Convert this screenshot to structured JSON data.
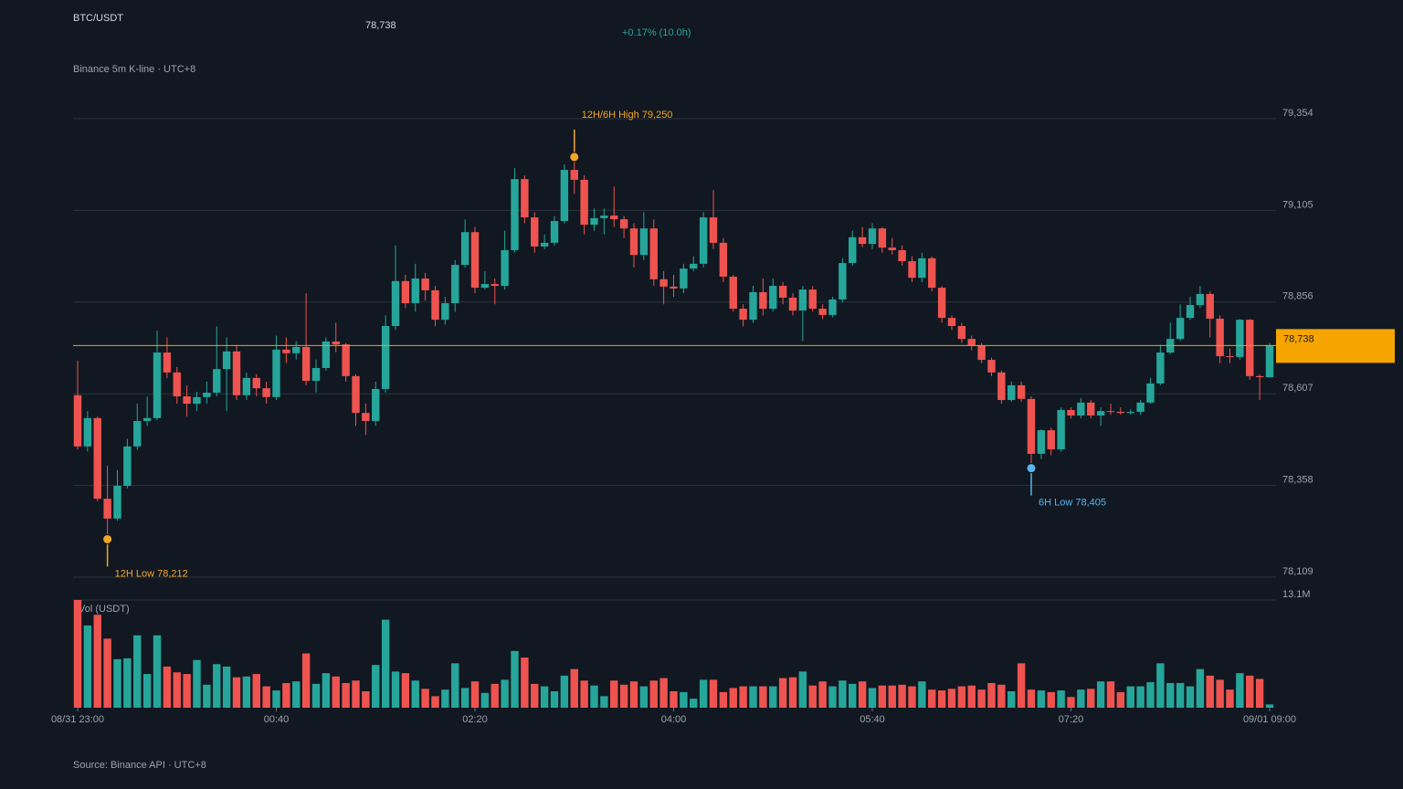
{
  "chart_data": {
    "type": "candlestick",
    "title": "BTC/USDT",
    "price": "78,738",
    "change": "+0.17% (10.0h)",
    "subtitle": "Binance 5m K-line · UTC+8",
    "source": "Source: Binance API · UTC+8",
    "volume_label": "Vol (USDT)",
    "up_color": "#26a69a",
    "down_color": "#ef5350",
    "grid": true,
    "categories": [
      "08/31 23:00",
      null,
      null,
      null,
      null,
      null,
      null,
      null,
      null,
      null,
      null,
      null,
      null,
      null,
      null,
      null,
      null,
      null,
      null,
      null,
      "00:40",
      null,
      null,
      null,
      null,
      null,
      null,
      null,
      null,
      null,
      null,
      null,
      null,
      null,
      null,
      null,
      null,
      null,
      null,
      null,
      "02:20",
      null,
      null,
      null,
      null,
      null,
      null,
      null,
      null,
      null,
      null,
      null,
      null,
      null,
      null,
      null,
      null,
      null,
      null,
      null,
      "04:00",
      null,
      null,
      null,
      null,
      null,
      null,
      null,
      null,
      null,
      null,
      null,
      null,
      null,
      null,
      null,
      null,
      null,
      null,
      null,
      "05:40",
      null,
      null,
      null,
      null,
      null,
      null,
      null,
      null,
      null,
      null,
      null,
      null,
      null,
      null,
      null,
      null,
      null,
      null,
      null,
      "07:20",
      null,
      null,
      null,
      null,
      null,
      null,
      null,
      null,
      null,
      null,
      null,
      null,
      null,
      null,
      null,
      null,
      null,
      null,
      null,
      "09/01 09:00"
    ],
    "open": [
      78603,
      78464,
      78541,
      78322,
      78268,
      78357,
      78464,
      78533,
      78541,
      78719,
      78665,
      78600,
      78580,
      78598,
      78610,
      78674,
      78722,
      78603,
      78650,
      78622,
      78598,
      78727,
      78717,
      78734,
      78642,
      78677,
      78749,
      78741,
      78655,
      78555,
      78533,
      78620,
      78791,
      78913,
      78853,
      78920,
      78888,
      78808,
      78853,
      78957,
      79046,
      78895,
      78905,
      78900,
      78997,
      79190,
      79086,
      79007,
      79017,
      79076,
      79215,
      79188,
      79066,
      79084,
      79091,
      79081,
      79056,
      78984,
      79056,
      78918,
      78898,
      78893,
      78947,
      78960,
      79086,
      79017,
      78925,
      78838,
      78808,
      78883,
      78838,
      78900,
      78868,
      78833,
      78890,
      78838,
      78821,
      78863,
      78962,
      79032,
      79014,
      79056,
      79004,
      78997,
      78967,
      78922,
      78975,
      78895,
      78813,
      78791,
      78756,
      78739,
      78699,
      78665,
      78590,
      78630,
      78593,
      78444,
      78508,
      78456,
      78563,
      78548,
      78583,
      78548,
      78560,
      78558,
      78555,
      78558,
      78583,
      78635,
      78719,
      78756,
      78813,
      78848,
      78878,
      78811,
      78709,
      78707,
      78808,
      78655,
      78652
    ],
    "high": [
      78697,
      78560,
      78545,
      78412,
      78400,
      78485,
      78580,
      78600,
      78779,
      78760,
      78680,
      78630,
      78612,
      78640,
      78790,
      78760,
      78740,
      78665,
      78660,
      78640,
      78765,
      78760,
      78750,
      78880,
      78700,
      78760,
      78800,
      78745,
      78660,
      78580,
      78640,
      78820,
      79010,
      78930,
      78960,
      78935,
      78900,
      78870,
      78970,
      79080,
      79060,
      78940,
      78920,
      79050,
      79220,
      79200,
      79100,
      79040,
      79090,
      79230,
      79250,
      79200,
      79110,
      79110,
      79170,
      79090,
      79070,
      79100,
      79080,
      78940,
      78930,
      78960,
      78980,
      79100,
      79160,
      79030,
      78930,
      78850,
      78900,
      78920,
      78920,
      78910,
      78880,
      78900,
      78900,
      78850,
      78870,
      78975,
      79050,
      79060,
      79070,
      79060,
      79030,
      79010,
      78980,
      78990,
      78980,
      78900,
      78820,
      78800,
      78765,
      78745,
      78705,
      78670,
      78640,
      78640,
      78600,
      78510,
      78515,
      78570,
      78570,
      78595,
      78590,
      78570,
      78580,
      78570,
      78565,
      78590,
      78650,
      78740,
      78800,
      78850,
      78870,
      78900,
      78885,
      78820,
      78730,
      78810,
      78810,
      78660,
      78745
    ],
    "low": [
      78456,
      78450,
      78315,
      78212,
      78262,
      78350,
      78455,
      78520,
      78535,
      78650,
      78580,
      78545,
      78560,
      78580,
      78600,
      78560,
      78590,
      78590,
      78600,
      78580,
      78590,
      78690,
      78700,
      78630,
      78610,
      78670,
      78720,
      78640,
      78520,
      78495,
      78520,
      78610,
      78780,
      78840,
      78830,
      78860,
      78790,
      78795,
      78830,
      78950,
      78880,
      78890,
      78850,
      78890,
      78990,
      79070,
      78990,
      79000,
      79010,
      79070,
      79150,
      79040,
      79050,
      79040,
      79060,
      79030,
      78950,
      78970,
      78900,
      78850,
      78870,
      78880,
      78940,
      78950,
      79000,
      78910,
      78830,
      78790,
      78800,
      78820,
      78830,
      78850,
      78820,
      78750,
      78830,
      78810,
      78815,
      78855,
      78955,
      79005,
      79000,
      78990,
      78985,
      78955,
      78910,
      78910,
      78885,
      78800,
      78780,
      78745,
      78725,
      78690,
      78655,
      78580,
      78585,
      78585,
      78405,
      78430,
      78440,
      78450,
      78540,
      78540,
      78540,
      78520,
      78550,
      78550,
      78550,
      78550,
      78580,
      78630,
      78715,
      78750,
      78808,
      78840,
      78760,
      78690,
      78690,
      78700,
      78645,
      78590,
      78650
    ],
    "close": [
      78464,
      78541,
      78322,
      78268,
      78357,
      78464,
      78533,
      78541,
      78719,
      78665,
      78600,
      78580,
      78598,
      78610,
      78674,
      78722,
      78603,
      78650,
      78622,
      78598,
      78727,
      78717,
      78734,
      78642,
      78677,
      78749,
      78741,
      78655,
      78555,
      78533,
      78620,
      78791,
      78913,
      78853,
      78920,
      78888,
      78808,
      78853,
      78957,
      79046,
      78895,
      78905,
      78900,
      78997,
      79190,
      79086,
      79007,
      79017,
      79076,
      79215,
      79188,
      79066,
      79084,
      79091,
      79081,
      79056,
      78984,
      79056,
      78918,
      78898,
      78893,
      78947,
      78960,
      79086,
      79017,
      78925,
      78838,
      78808,
      78883,
      78838,
      78900,
      78868,
      78833,
      78890,
      78838,
      78821,
      78863,
      78962,
      79032,
      79014,
      79056,
      79004,
      78997,
      78967,
      78922,
      78975,
      78895,
      78813,
      78791,
      78756,
      78739,
      78699,
      78665,
      78590,
      78630,
      78593,
      78444,
      78508,
      78456,
      78563,
      78548,
      78583,
      78548,
      78560,
      78558,
      78555,
      78558,
      78583,
      78635,
      78719,
      78756,
      78813,
      78848,
      78878,
      78811,
      78709,
      78707,
      78808,
      78655,
      78652,
      78738
    ],
    "volume": [
      13.1,
      10.0,
      11.3,
      8.4,
      5.9,
      6.0,
      8.8,
      4.1,
      8.8,
      5.0,
      4.3,
      4.1,
      5.8,
      2.8,
      5.3,
      5.0,
      3.7,
      3.8,
      4.1,
      2.6,
      2.1,
      3.0,
      3.2,
      6.6,
      2.9,
      4.2,
      3.8,
      3.0,
      3.3,
      2.0,
      5.2,
      10.7,
      4.4,
      4.2,
      3.3,
      2.3,
      1.4,
      2.2,
      5.4,
      2.4,
      3.2,
      1.8,
      2.9,
      3.4,
      6.9,
      6.1,
      2.9,
      2.6,
      2.0,
      3.9,
      4.7,
      3.3,
      2.7,
      1.4,
      3.3,
      2.8,
      3.2,
      2.6,
      3.3,
      3.6,
      2.0,
      1.9,
      1.1,
      3.4,
      3.4,
      1.9,
      2.4,
      2.6,
      2.6,
      2.6,
      2.6,
      3.6,
      3.7,
      4.4,
      2.7,
      3.2,
      2.6,
      3.3,
      2.9,
      3.2,
      2.4,
      2.7,
      2.7,
      2.8,
      2.6,
      3.2,
      2.2,
      2.1,
      2.3,
      2.6,
      2.7,
      2.2,
      3.0,
      2.8,
      2.0,
      5.4,
      2.2,
      2.1,
      1.9,
      2.1,
      1.3,
      2.2,
      2.3,
      3.2,
      3.2,
      1.9,
      2.6,
      2.6,
      3.1,
      5.4,
      3.0,
      3.0,
      2.6,
      4.7,
      3.9,
      3.4,
      2.2,
      4.2,
      3.9,
      3.5,
      0.4
    ],
    "ylim": [
      78109,
      79354
    ],
    "yticks": [
      {
        "value": 78109,
        "label": "78,109"
      },
      {
        "value": 78358,
        "label": "78,358"
      },
      {
        "value": 78607,
        "label": "78,607"
      },
      {
        "value": 78856,
        "label": "78,856"
      },
      {
        "value": 79105,
        "label": "79,105"
      },
      {
        "value": 79354,
        "label": "79,354"
      }
    ],
    "vlim": [
      0,
      13.1
    ],
    "vticks": [
      {
        "value": 13.1,
        "label": "13.1M"
      }
    ],
    "last": {
      "value": 78738,
      "label": "78,738",
      "color": "#f5a400"
    },
    "annotations": [
      {
        "text": "12H/6H High 79,250",
        "value": 79250,
        "kind": "high",
        "color": "#f5a623"
      },
      {
        "text": "6H Low 78,405",
        "value": 78405,
        "kind": "low",
        "color": "#5ab4f0"
      },
      {
        "text": "12H Low 78,212",
        "value": 78212,
        "kind": "low",
        "color": "#f5a623"
      }
    ]
  }
}
